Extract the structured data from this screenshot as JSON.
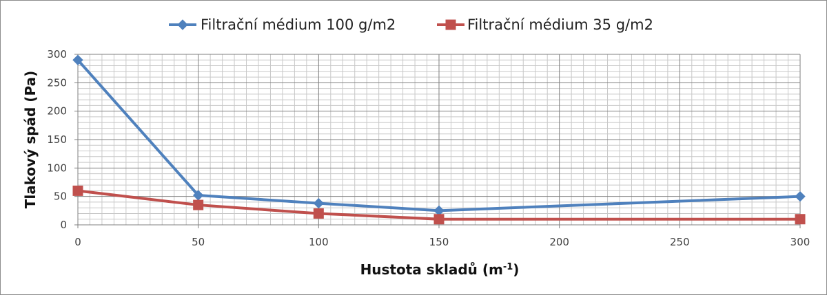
{
  "chart_data": {
    "type": "line",
    "x": [
      0,
      50,
      100,
      150,
      300
    ],
    "xlabel_main": "Hustota skladů (m",
    "xlabel_sup": "-1",
    "xlabel_end": ")",
    "ylabel": "Tlakový spád (Pa)",
    "xlim": [
      0,
      300
    ],
    "ylim": [
      0,
      300
    ],
    "x_ticks": [
      0,
      50,
      100,
      150,
      200,
      250,
      300
    ],
    "y_ticks": [
      0,
      50,
      100,
      150,
      200,
      250,
      300
    ],
    "grid": true,
    "legend_position": "top",
    "series": [
      {
        "name": "Filtrační médium 100 g/m2",
        "values": [
          290,
          52,
          38,
          25,
          50
        ],
        "color": "#4f81bd",
        "marker": "diamond"
      },
      {
        "name": "Filtrační médium 35 g/m2",
        "values": [
          60,
          35,
          20,
          10,
          10
        ],
        "color": "#c0504d",
        "marker": "square"
      }
    ]
  }
}
